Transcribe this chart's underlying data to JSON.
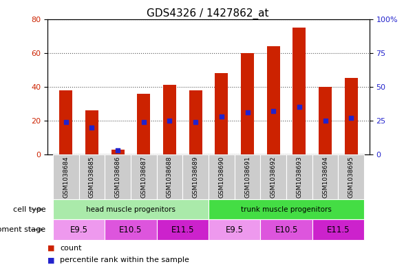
{
  "title": "GDS4326 / 1427862_at",
  "samples": [
    "GSM1038684",
    "GSM1038685",
    "GSM1038686",
    "GSM1038687",
    "GSM1038688",
    "GSM1038689",
    "GSM1038690",
    "GSM1038691",
    "GSM1038692",
    "GSM1038693",
    "GSM1038694",
    "GSM1038695"
  ],
  "counts": [
    38,
    26,
    3,
    36,
    41,
    38,
    48,
    60,
    64,
    75,
    40,
    45
  ],
  "percentile_ranks": [
    24,
    20,
    3,
    24,
    25,
    24,
    28,
    31,
    32,
    35,
    25,
    27
  ],
  "bar_color": "#cc2200",
  "dot_color": "#2222cc",
  "left_ylim": [
    0,
    80
  ],
  "right_ylim": [
    0,
    100
  ],
  "left_yticks": [
    0,
    20,
    40,
    60,
    80
  ],
  "right_yticks": [
    0,
    25,
    50,
    75,
    100
  ],
  "right_yticklabels": [
    "0",
    "25",
    "50",
    "75",
    "100%"
  ],
  "cell_type_groups": [
    {
      "label": "head muscle progenitors",
      "start": 0,
      "end": 5,
      "color": "#aaeaaa"
    },
    {
      "label": "trunk muscle progenitors",
      "start": 6,
      "end": 11,
      "color": "#44dd44"
    }
  ],
  "dev_stage_groups": [
    {
      "label": "E9.5",
      "start": 0,
      "end": 1,
      "color": "#ee99ee"
    },
    {
      "label": "E10.5",
      "start": 2,
      "end": 3,
      "color": "#dd55dd"
    },
    {
      "label": "E11.5",
      "start": 4,
      "end": 5,
      "color": "#cc22cc"
    },
    {
      "label": "E9.5",
      "start": 6,
      "end": 7,
      "color": "#ee99ee"
    },
    {
      "label": "E10.5",
      "start": 8,
      "end": 9,
      "color": "#dd55dd"
    },
    {
      "label": "E11.5",
      "start": 10,
      "end": 11,
      "color": "#cc22cc"
    }
  ],
  "grid_color": "#555555",
  "bg_color": "#ffffff",
  "tick_label_color_left": "#cc2200",
  "tick_label_color_right": "#2222cc",
  "bar_width": 0.5,
  "dot_size": 18,
  "xlim": [
    -0.7,
    11.7
  ]
}
